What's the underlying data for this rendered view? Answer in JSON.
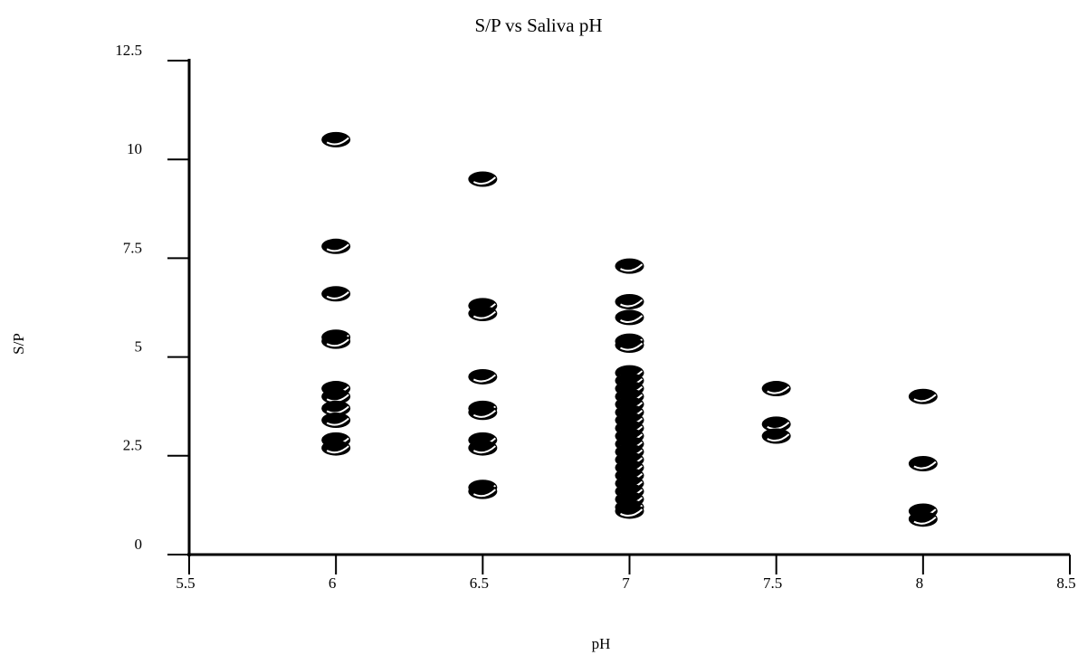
{
  "chart_data": {
    "type": "scatter",
    "title": "S/P vs Saliva pH",
    "x_label": "pH",
    "y_label": "S/P",
    "xlim": [
      5.5,
      8.5
    ],
    "xticks": [
      5.5,
      6,
      6.5,
      7,
      7.5,
      8,
      8.5
    ],
    "ylim": [
      0,
      12.5
    ],
    "yticks": [
      0,
      2.5,
      5,
      7.5,
      10,
      12.5
    ],
    "color": "#000000",
    "x": [
      6,
      6,
      6,
      6,
      6,
      6,
      6,
      6,
      6,
      6,
      6,
      6.5,
      6.5,
      6.5,
      6.5,
      6.5,
      6.5,
      6.5,
      6.5,
      6.5,
      6.5,
      7,
      7,
      7,
      7,
      7,
      7,
      7,
      7,
      7,
      7,
      7,
      7,
      7,
      7,
      7,
      7,
      7,
      7,
      7,
      7,
      7,
      7,
      7,
      7,
      7.5,
      7.5,
      7.5,
      8,
      8,
      8,
      8
    ],
    "values": [
      10.5,
      7.8,
      6.6,
      5.5,
      5.4,
      4.2,
      4.0,
      3.7,
      3.4,
      2.9,
      2.7,
      9.5,
      6.3,
      6.1,
      4.5,
      3.7,
      3.6,
      2.9,
      2.7,
      1.7,
      1.6,
      7.3,
      6.4,
      6.0,
      5.4,
      5.3,
      4.6,
      4.4,
      4.2,
      4.0,
      3.8,
      3.6,
      3.4,
      3.2,
      3.0,
      2.8,
      2.6,
      2.4,
      2.2,
      2.0,
      1.8,
      1.6,
      1.4,
      1.2,
      1.1,
      4.2,
      3.3,
      3.0,
      4.0,
      2.3,
      1.1,
      0.9
    ]
  }
}
